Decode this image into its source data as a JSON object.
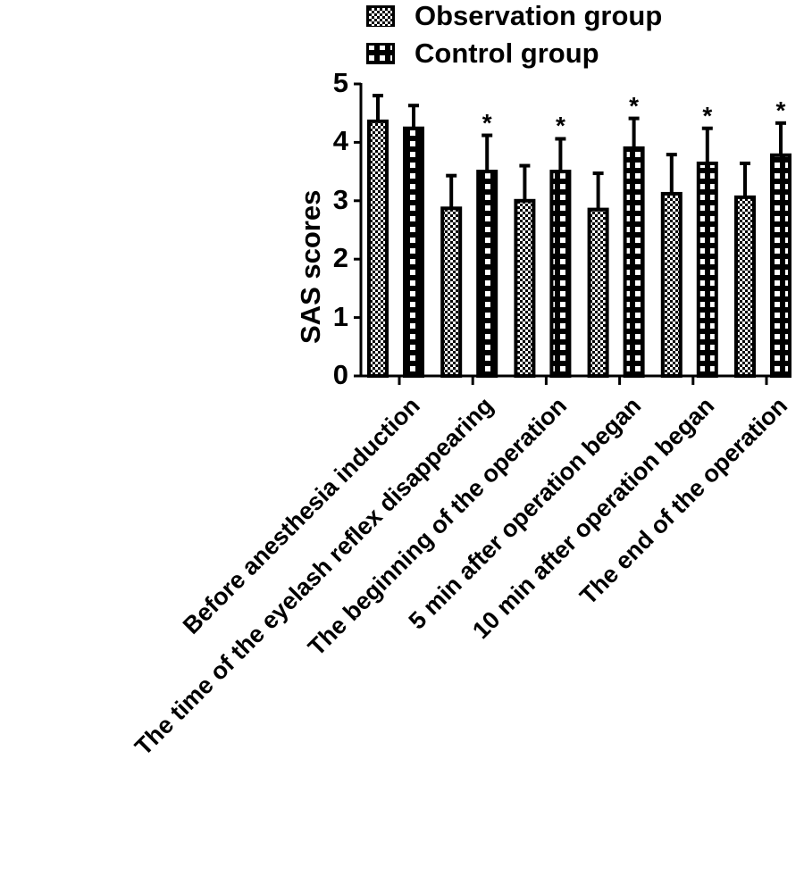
{
  "chart_data": {
    "type": "bar",
    "title": "",
    "xlabel": "",
    "ylabel": "SAS scores",
    "ylim": [
      0,
      5
    ],
    "yticks": [
      0,
      1,
      2,
      3,
      4,
      5
    ],
    "grid": false,
    "legend_position": "top",
    "categories": [
      "Before anesthesia induction",
      "The time of the eyelash reflex disappearing",
      "The beginning of the operation",
      "5 min after operation began",
      "10 min after operation began",
      "The end of the operation"
    ],
    "series": [
      {
        "name": "Observation group",
        "pattern": "fine-checker",
        "values": [
          4.36,
          2.87,
          3.0,
          2.85,
          3.12,
          3.06
        ],
        "error_upper": [
          4.8,
          3.43,
          3.6,
          3.47,
          3.79,
          3.64
        ]
      },
      {
        "name": "Control group",
        "pattern": "coarse-checker",
        "values": [
          4.24,
          3.5,
          3.5,
          3.9,
          3.64,
          3.78
        ],
        "error_upper": [
          4.63,
          4.12,
          4.06,
          4.41,
          4.24,
          4.33
        ],
        "significance": [
          "",
          "*",
          "*",
          "*",
          "*",
          "*"
        ]
      }
    ]
  },
  "legend": {
    "items": [
      {
        "label": "Observation group"
      },
      {
        "label": "Control group"
      }
    ]
  },
  "axis": {
    "ylabel": "SAS scores",
    "yticks": [
      "0",
      "1",
      "2",
      "3",
      "4",
      "5"
    ],
    "xticks": [
      "Before anesthesia induction",
      "The time of the eyelash reflex disappearing",
      "The beginning of the operation",
      "5 min after operation began",
      "10 min after operation began",
      "The end of the operation"
    ]
  },
  "annotations": {
    "significance_marker": "*"
  },
  "colors": {
    "ink": "#000000",
    "background": "#ffffff"
  }
}
